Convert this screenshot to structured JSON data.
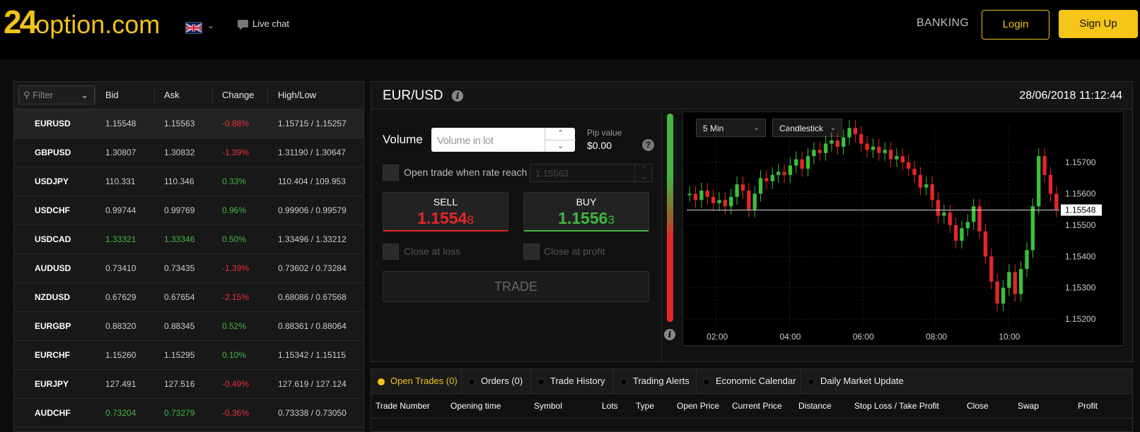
{
  "header": {
    "logo_num": "24",
    "logo_text": "option.com",
    "live_chat": "Live chat",
    "banking": "BANKING",
    "login": "Login",
    "signup": "Sign Up"
  },
  "watchlist": {
    "filter_placeholder": "Filter",
    "columns": [
      "Bid",
      "Ask",
      "Change",
      "High/Low"
    ],
    "rows": [
      {
        "symbol": "EURUSD",
        "bid": "1.15548",
        "ask": "1.15563",
        "change": "-0.88%",
        "highlow": "1.15715 / 1.15257"
      },
      {
        "symbol": "GBPUSD",
        "bid": "1.30807",
        "ask": "1.30832",
        "change": "-1.39%",
        "highlow": "1.31190 / 1.30647"
      },
      {
        "symbol": "USDJPY",
        "bid": "110.331",
        "ask": "110.346",
        "change": "0.33%",
        "highlow": "110.404 / 109.953"
      },
      {
        "symbol": "USDCHF",
        "bid": "0.99744",
        "ask": "0.99769",
        "change": "0.96%",
        "highlow": "0.99906 / 0.99579"
      },
      {
        "symbol": "USDCAD",
        "bid": "1.33321",
        "ask": "1.33346",
        "change": "0.50%",
        "highlow": "1.33496 / 1.33212"
      },
      {
        "symbol": "AUDUSD",
        "bid": "0.73410",
        "ask": "0.73435",
        "change": "-1.39%",
        "highlow": "0.73602 / 0.73284"
      },
      {
        "symbol": "NZDUSD",
        "bid": "0.67629",
        "ask": "0.67654",
        "change": "-2.15%",
        "highlow": "0.68086 / 0.67568"
      },
      {
        "symbol": "EURGBP",
        "bid": "0.88320",
        "ask": "0.88345",
        "change": "0.52%",
        "highlow": "0.88361 / 0.88064"
      },
      {
        "symbol": "EURCHF",
        "bid": "1.15260",
        "ask": "1.15295",
        "change": "0.10%",
        "highlow": "1.15342 / 1.15115"
      },
      {
        "symbol": "EURJPY",
        "bid": "127.491",
        "ask": "127.516",
        "change": "-0.49%",
        "highlow": "127.619 / 127.124"
      },
      {
        "symbol": "AUDCHF",
        "bid": "0.73204",
        "ask": "0.73279",
        "change": "-0.36%",
        "highlow": "0.73338 / 0.73050"
      }
    ]
  },
  "trade": {
    "pair": "EUR/USD",
    "datetime": "28/06/2018 11:12:44",
    "volume_label": "Volume",
    "volume_placeholder": "Volume in lot",
    "pip_label": "Pip value",
    "pip_value": "$0.00",
    "open_when_label": "Open trade when rate reach",
    "rate_value": "1.15563",
    "sell_label": "SELL",
    "sell_price_main": "1.1554",
    "sell_price_last": "8",
    "buy_label": "BUY",
    "buy_price_main": "1.1556",
    "buy_price_last": "3",
    "close_loss": "Close at loss",
    "close_profit": "Close at profit",
    "trade_button": "TRADE"
  },
  "chart_controls": {
    "interval": "5 Min",
    "chart_type": "Candlestick"
  },
  "chart_data": {
    "type": "candlestick",
    "x_ticks": [
      "02:00",
      "04:00",
      "06:00",
      "08:00",
      "10:00"
    ],
    "y_ticks": [
      "1.15700",
      "1.15600",
      "1.15500",
      "1.15400",
      "1.15300",
      "1.15200"
    ],
    "ylim": [
      1.1518,
      1.1577
    ],
    "current_price": "1.15548",
    "closes": [
      1.156,
      1.1558,
      1.1561,
      1.1559,
      1.1557,
      1.1558,
      1.1556,
      1.1559,
      1.1563,
      1.1561,
      1.1555,
      1.156,
      1.1565,
      1.1564,
      1.1566,
      1.1567,
      1.1566,
      1.1569,
      1.1571,
      1.1568,
      1.1572,
      1.1574,
      1.1573,
      1.1576,
      1.1577,
      1.1575,
      1.1578,
      1.1581,
      1.1579,
      1.1576,
      1.1574,
      1.1575,
      1.1573,
      1.1574,
      1.1571,
      1.1572,
      1.157,
      1.1568,
      1.1566,
      1.1562,
      1.1563,
      1.1558,
      1.1553,
      1.1554,
      1.155,
      1.1545,
      1.1549,
      1.1551,
      1.1556,
      1.1548,
      1.154,
      1.1532,
      1.1525,
      1.153,
      1.1535,
      1.1528,
      1.1536,
      1.1542,
      1.1556,
      1.1572,
      1.1566,
      1.156,
      1.1555
    ]
  },
  "bottom_tabs": [
    {
      "label": "Open Trades (0)"
    },
    {
      "label": "Orders (0)"
    },
    {
      "label": "Trade History"
    },
    {
      "label": "Trading Alerts"
    },
    {
      "label": "Economic Calendar"
    },
    {
      "label": "Daily Market Update"
    }
  ],
  "trade_columns": [
    "Trade Number",
    "Opening time",
    "Symbol",
    "Lots",
    "Type",
    "Open Price",
    "Current Price",
    "Distance",
    "Stop Loss / Take Profit",
    "Close",
    "Swap",
    "Profit"
  ],
  "colors": {
    "accent": "#f0c419",
    "sell": "#e52727",
    "buy": "#43b643"
  }
}
